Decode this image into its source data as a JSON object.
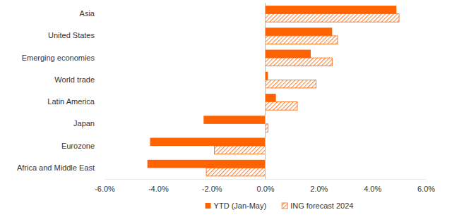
{
  "chart_data": {
    "type": "bar",
    "orientation": "horizontal",
    "categories": [
      "Asia",
      "United States",
      "Emerging economies",
      "World trade",
      "Latin America",
      "Japan",
      "Eurozone",
      "Africa and Middle East"
    ],
    "series": [
      {
        "name": "YTD (Jan-May)",
        "color": "#ff6200",
        "values": [
          4.9,
          2.5,
          1.7,
          0.1,
          0.4,
          -2.3,
          -4.3,
          -4.4
        ]
      },
      {
        "name": "ING forecast 2024",
        "color": "#ff6200",
        "values": [
          5.0,
          2.7,
          2.5,
          1.9,
          1.2,
          0.1,
          -1.9,
          -2.2
        ]
      }
    ],
    "xlim": [
      -6,
      6
    ],
    "xticks": [
      {
        "value": -6,
        "label": "-6.0%"
      },
      {
        "value": -4,
        "label": "-4.0%"
      },
      {
        "value": -2,
        "label": "-2.0%"
      },
      {
        "value": 0,
        "label": "0.0%"
      },
      {
        "value": 2,
        "label": "2.0%"
      },
      {
        "value": 4,
        "label": "4.0%"
      },
      {
        "value": 6,
        "label": "6.0%"
      }
    ],
    "grid": false,
    "legend": "bottom"
  }
}
